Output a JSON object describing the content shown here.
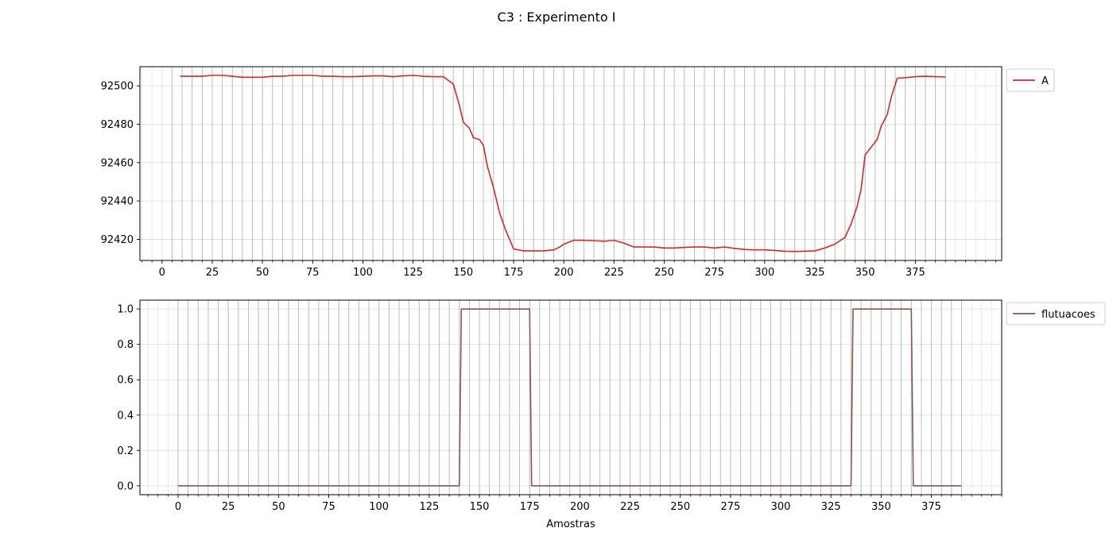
{
  "figure": {
    "suptitle": "C3 : Experimento I"
  },
  "chart_data": [
    {
      "type": "line",
      "xlabel": "",
      "ylabel": "",
      "xlim": [
        -11,
        418
      ],
      "ylim": [
        92409,
        92510
      ],
      "xticks": [
        0,
        25,
        50,
        75,
        100,
        125,
        150,
        175,
        200,
        225,
        250,
        275,
        300,
        325,
        350,
        375
      ],
      "yticks": [
        92420,
        92440,
        92460,
        92480,
        92500
      ],
      "minor_x_step": 5,
      "grid": true,
      "vlines_step": 5,
      "vlines_range": [
        5,
        390
      ],
      "legend_position": "outside-top-right",
      "series": [
        {
          "name": "A",
          "color": "#d62728",
          "points": [
            [
              9,
              92505
            ],
            [
              15,
              92505
            ],
            [
              20,
              92505
            ],
            [
              25,
              92505.5
            ],
            [
              30,
              92505.5
            ],
            [
              35,
              92505
            ],
            [
              40,
              92504.5
            ],
            [
              45,
              92504.5
            ],
            [
              50,
              92504.5
            ],
            [
              55,
              92505
            ],
            [
              60,
              92505
            ],
            [
              65,
              92505.5
            ],
            [
              70,
              92505.5
            ],
            [
              75,
              92505.5
            ],
            [
              80,
              92505
            ],
            [
              85,
              92505
            ],
            [
              90,
              92504.8
            ],
            [
              95,
              92504.8
            ],
            [
              100,
              92505
            ],
            [
              105,
              92505.2
            ],
            [
              110,
              92505.2
            ],
            [
              115,
              92504.8
            ],
            [
              120,
              92505.2
            ],
            [
              125,
              92505.5
            ],
            [
              130,
              92505
            ],
            [
              135,
              92504.8
            ],
            [
              140,
              92504.8
            ],
            [
              145,
              92501
            ],
            [
              148,
              92490
            ],
            [
              150,
              92481
            ],
            [
              153,
              92478
            ],
            [
              155,
              92473
            ],
            [
              158,
              92472
            ],
            [
              160,
              92469
            ],
            [
              162,
              92458
            ],
            [
              165,
              92447
            ],
            [
              168,
              92434
            ],
            [
              171,
              92425
            ],
            [
              175,
              92415
            ],
            [
              180,
              92414
            ],
            [
              185,
              92414
            ],
            [
              190,
              92414
            ],
            [
              195,
              92414.5
            ],
            [
              198,
              92416
            ],
            [
              200,
              92417.5
            ],
            [
              205,
              92419.5
            ],
            [
              210,
              92419.5
            ],
            [
              215,
              92419.3
            ],
            [
              220,
              92419
            ],
            [
              225,
              92419.5
            ],
            [
              230,
              92418
            ],
            [
              235,
              92416
            ],
            [
              240,
              92416
            ],
            [
              245,
              92416
            ],
            [
              250,
              92415.5
            ],
            [
              255,
              92415.5
            ],
            [
              260,
              92415.8
            ],
            [
              265,
              92416
            ],
            [
              270,
              92416
            ],
            [
              275,
              92415.5
            ],
            [
              280,
              92416
            ],
            [
              285,
              92415.3
            ],
            [
              290,
              92414.7
            ],
            [
              295,
              92414.5
            ],
            [
              300,
              92414.5
            ],
            [
              305,
              92414.2
            ],
            [
              310,
              92413.8
            ],
            [
              315,
              92413.7
            ],
            [
              320,
              92413.8
            ],
            [
              325,
              92414
            ],
            [
              330,
              92415.5
            ],
            [
              335,
              92417.5
            ],
            [
              340,
              92421
            ],
            [
              343,
              92428
            ],
            [
              346,
              92437
            ],
            [
              348,
              92446
            ],
            [
              350,
              92464
            ],
            [
              353,
              92468
            ],
            [
              356,
              92472
            ],
            [
              358,
              92479
            ],
            [
              361,
              92485
            ],
            [
              363,
              92494
            ],
            [
              366,
              92504
            ],
            [
              370,
              92504.3
            ],
            [
              375,
              92504.8
            ],
            [
              380,
              92505
            ],
            [
              385,
              92504.8
            ],
            [
              390,
              92504.7
            ]
          ]
        }
      ]
    },
    {
      "type": "line",
      "xlabel": "Amostras",
      "ylabel": "",
      "xlim": [
        -19,
        410
      ],
      "ylim": [
        -0.05,
        1.05
      ],
      "xticks": [
        0,
        25,
        50,
        75,
        100,
        125,
        150,
        175,
        200,
        225,
        250,
        275,
        300,
        325,
        350,
        375
      ],
      "yticks": [
        0.0,
        0.2,
        0.4,
        0.6,
        0.8,
        1.0
      ],
      "ytick_labels": [
        "0.0",
        "0.2",
        "0.4",
        "0.6",
        "0.8",
        "1.0"
      ],
      "minor_x_step": 5,
      "grid": true,
      "vlines_step": 5,
      "vlines_range": [
        0,
        390
      ],
      "legend_position": "outside-top-right",
      "series": [
        {
          "name": "flutuacoes",
          "color": "#8c564b",
          "points": [
            [
              0,
              0
            ],
            [
              140,
              0
            ],
            [
              141,
              1
            ],
            [
              175,
              1
            ],
            [
              176,
              0
            ],
            [
              335,
              0
            ],
            [
              336,
              1
            ],
            [
              365,
              1
            ],
            [
              366,
              0
            ],
            [
              390,
              0
            ]
          ]
        }
      ]
    }
  ]
}
